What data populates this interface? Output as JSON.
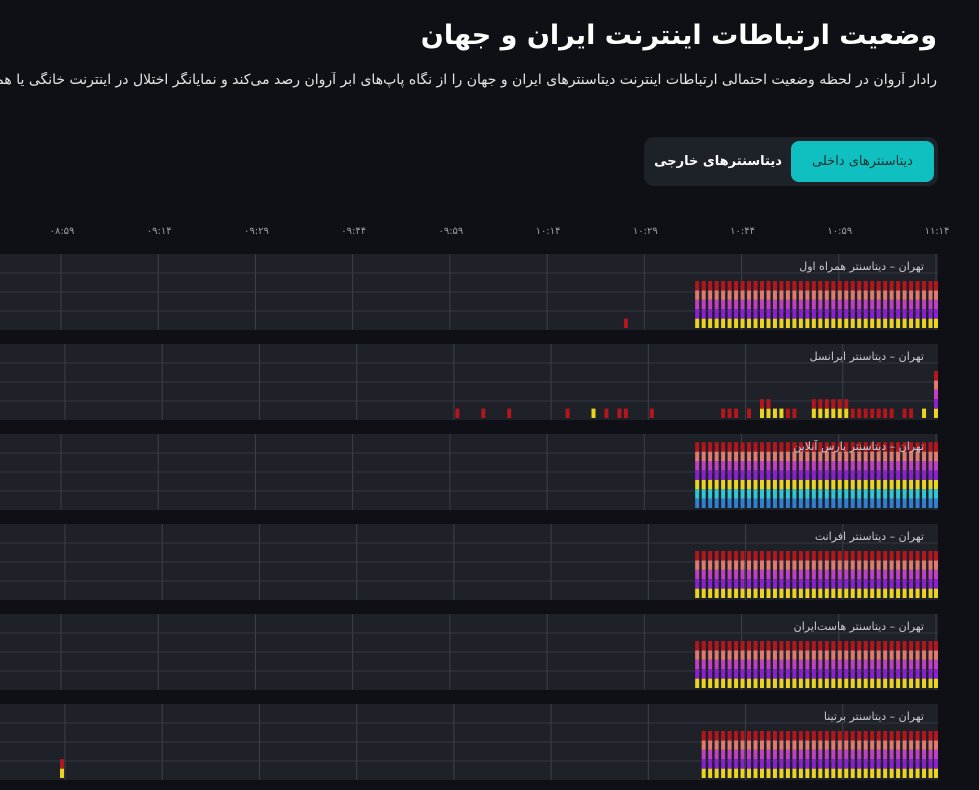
{
  "header": {
    "title": "وضعیت ارتباطات اینترنت ایران و جهان",
    "subtitle": "رادار آروان در لحظه وضعیت احتمالی ارتباطات اینترنت دیتاسنترهای ایران و جهان را از نگاه پاپ‌های ابر آروان رصد می‌کند و نمایانگر اختلال در اینترنت خانگی یا همراه نیست"
  },
  "tabs": [
    {
      "label": "دیتاسنترهای داخلی",
      "active": true
    },
    {
      "label": "دیتاسنترهای خارجی",
      "active": false
    }
  ],
  "colors": {
    "accent": "#10bfbf",
    "r": "#b3161c",
    "s": "#e07a70",
    "m": "#c040c2",
    "p": "#8a20d2",
    "y": "#e9d41f",
    "c": "#2fc6d6",
    "b": "#2f7fd2"
  },
  "chart_data": {
    "type": "bar",
    "stacked": true,
    "x_ticks": [
      "۰۸:۵۹",
      "۰۹:۱۴",
      "۰۹:۲۹",
      "۰۹:۴۴",
      "۰۹:۵۹",
      "۱۰:۱۴",
      "۱۰:۲۹",
      "۱۰:۴۴",
      "۱۰:۵۹",
      "۱۱:۱۴"
    ],
    "x_range": [
      "08:59",
      "11:14"
    ],
    "rows": [
      {
        "label": "تهران – دیتاسنتر همراه اول",
        "continuous": {
          "from": "10:37",
          "to": "11:14",
          "stack": [
            "y",
            "p",
            "m",
            "s",
            "r"
          ]
        },
        "bars": [
          {
            "t": "10:26",
            "stack": [
              "r"
            ]
          }
        ]
      },
      {
        "label": "تهران – دیتاسنتر ایرانسل",
        "bars": [
          {
            "t": "10:00",
            "stack": [
              "r"
            ]
          },
          {
            "t": "10:04",
            "stack": [
              "r"
            ]
          },
          {
            "t": "10:08",
            "stack": [
              "r"
            ]
          },
          {
            "t": "10:17",
            "stack": [
              "r"
            ]
          },
          {
            "t": "10:21",
            "stack": [
              "y"
            ]
          },
          {
            "t": "10:23",
            "stack": [
              "r"
            ]
          },
          {
            "t": "10:25",
            "stack": [
              "r"
            ]
          },
          {
            "t": "10:26",
            "stack": [
              "r"
            ]
          },
          {
            "t": "10:30",
            "stack": [
              "r"
            ]
          },
          {
            "t": "10:41",
            "stack": [
              "r"
            ]
          },
          {
            "t": "10:42",
            "stack": [
              "r"
            ]
          },
          {
            "t": "10:43",
            "stack": [
              "r"
            ]
          },
          {
            "t": "10:45",
            "stack": [
              "r"
            ]
          },
          {
            "t": "10:47",
            "stack": [
              "y",
              "r"
            ]
          },
          {
            "t": "10:48",
            "stack": [
              "y",
              "r"
            ]
          },
          {
            "t": "10:49",
            "stack": [
              "y"
            ]
          },
          {
            "t": "10:50",
            "stack": [
              "y"
            ]
          },
          {
            "t": "10:51",
            "stack": [
              "r"
            ]
          },
          {
            "t": "10:52",
            "stack": [
              "r"
            ]
          },
          {
            "t": "10:55",
            "stack": [
              "y",
              "r"
            ]
          },
          {
            "t": "10:56",
            "stack": [
              "y",
              "r"
            ]
          },
          {
            "t": "10:57",
            "stack": [
              "y",
              "r"
            ]
          },
          {
            "t": "10:58",
            "stack": [
              "y",
              "r"
            ]
          },
          {
            "t": "10:59",
            "stack": [
              "y",
              "r"
            ]
          },
          {
            "t": "11:00",
            "stack": [
              "y",
              "r"
            ]
          },
          {
            "t": "11:01",
            "stack": [
              "r"
            ]
          },
          {
            "t": "11:02",
            "stack": [
              "r"
            ]
          },
          {
            "t": "11:03",
            "stack": [
              "r"
            ]
          },
          {
            "t": "11:04",
            "stack": [
              "r"
            ]
          },
          {
            "t": "11:05",
            "stack": [
              "r"
            ]
          },
          {
            "t": "11:06",
            "stack": [
              "r"
            ]
          },
          {
            "t": "11:07",
            "stack": [
              "r"
            ]
          },
          {
            "t": "11:09",
            "stack": [
              "r"
            ]
          },
          {
            "t": "11:10",
            "stack": [
              "r"
            ]
          },
          {
            "t": "11:12",
            "stack": [
              "y"
            ]
          },
          {
            "t": "11:14",
            "stack": [
              "y",
              "p",
              "m",
              "s",
              "r"
            ]
          }
        ]
      },
      {
        "label": "تهران – دیتاسنتر پارس آنلاین",
        "continuous": {
          "from": "10:37",
          "to": "11:14",
          "stack": [
            "b",
            "c",
            "y",
            "p",
            "m",
            "s",
            "r"
          ]
        },
        "bars": []
      },
      {
        "label": "تهران – دیتاسنتر افرانت",
        "continuous": {
          "from": "10:37",
          "to": "11:14",
          "stack": [
            "y",
            "p",
            "m",
            "s",
            "r"
          ]
        },
        "bars": []
      },
      {
        "label": "تهران – دیتاسنتر هاست‌ایران",
        "continuous": {
          "from": "10:37",
          "to": "11:14",
          "stack": [
            "y",
            "p",
            "m",
            "s",
            "r"
          ]
        },
        "bars": []
      },
      {
        "label": "تهران – دیتاسنتر برتینا",
        "continuous": {
          "from": "10:38",
          "to": "11:14",
          "stack": [
            "y",
            "p",
            "m",
            "s",
            "r"
          ]
        },
        "bars": [
          {
            "t": "08:59",
            "stack": [
              "y",
              "r"
            ]
          }
        ]
      }
    ]
  }
}
